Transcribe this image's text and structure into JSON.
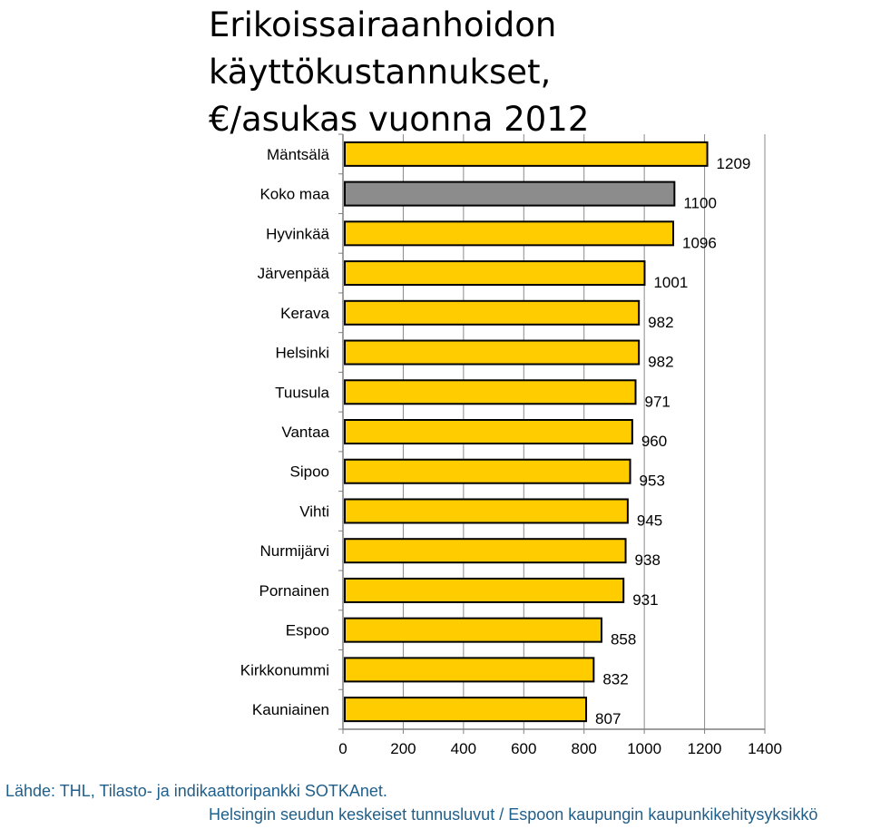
{
  "title_line1": "Erikoissairaanhoidon käyttökustannukset,",
  "title_line2": "€/asukas vuonna 2012",
  "chart_data": {
    "type": "bar",
    "orientation": "horizontal",
    "categories": [
      "Mäntsälä",
      "Koko maa",
      "Hyvinkää",
      "Järvenpää",
      "Kerava",
      "Helsinki",
      "Tuusula",
      "Vantaa",
      "Sipoo",
      "Vihti",
      "Nurmijärvi",
      "Pornainen",
      "Espoo",
      "Kirkkonummi",
      "Kauniainen"
    ],
    "values": [
      1209,
      1100,
      1096,
      1001,
      982,
      982,
      971,
      960,
      953,
      945,
      938,
      931,
      858,
      832,
      807
    ],
    "xlim": [
      0,
      1400
    ],
    "xticks": [
      0,
      200,
      400,
      600,
      800,
      1000,
      1200,
      1400
    ],
    "grid": true,
    "bar_color": "#FFCC00",
    "highlight_color": "#8C8C8C",
    "highlight_category": "Koko maa"
  },
  "source": "Lähde: THL, Tilasto- ja indikaattoripankki SOTKAnet.",
  "footer": "Helsingin seudun keskeiset tunnusluvut / Espoon kaupungin kaupunkikehitysyksikkö"
}
